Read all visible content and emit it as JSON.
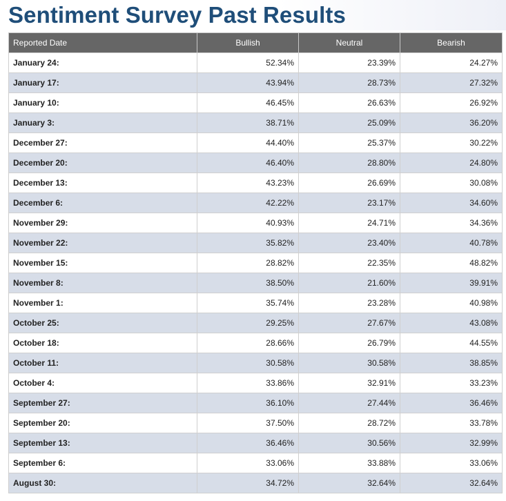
{
  "page": {
    "title": "Sentiment Survey Past Results"
  },
  "table": {
    "headers": [
      "Reported Date",
      "Bullish",
      "Neutral",
      "Bearish"
    ],
    "rows": [
      {
        "date": "January 24:",
        "bullish": "52.34%",
        "neutral": "23.39%",
        "bearish": "24.27%"
      },
      {
        "date": "January 17:",
        "bullish": "43.94%",
        "neutral": "28.73%",
        "bearish": "27.32%"
      },
      {
        "date": "January 10:",
        "bullish": "46.45%",
        "neutral": "26.63%",
        "bearish": "26.92%"
      },
      {
        "date": "January 3:",
        "bullish": "38.71%",
        "neutral": "25.09%",
        "bearish": "36.20%"
      },
      {
        "date": "December 27:",
        "bullish": "44.40%",
        "neutral": "25.37%",
        "bearish": "30.22%"
      },
      {
        "date": "December 20:",
        "bullish": "46.40%",
        "neutral": "28.80%",
        "bearish": "24.80%"
      },
      {
        "date": "December 13:",
        "bullish": "43.23%",
        "neutral": "26.69%",
        "bearish": "30.08%"
      },
      {
        "date": "December 6:",
        "bullish": "42.22%",
        "neutral": "23.17%",
        "bearish": "34.60%"
      },
      {
        "date": "November 29:",
        "bullish": "40.93%",
        "neutral": "24.71%",
        "bearish": "34.36%"
      },
      {
        "date": "November 22:",
        "bullish": "35.82%",
        "neutral": "23.40%",
        "bearish": "40.78%"
      },
      {
        "date": "November 15:",
        "bullish": "28.82%",
        "neutral": "22.35%",
        "bearish": "48.82%"
      },
      {
        "date": "November 8:",
        "bullish": "38.50%",
        "neutral": "21.60%",
        "bearish": "39.91%"
      },
      {
        "date": "November 1:",
        "bullish": "35.74%",
        "neutral": "23.28%",
        "bearish": "40.98%"
      },
      {
        "date": "October 25:",
        "bullish": "29.25%",
        "neutral": "27.67%",
        "bearish": "43.08%"
      },
      {
        "date": "October 18:",
        "bullish": "28.66%",
        "neutral": "26.79%",
        "bearish": "44.55%"
      },
      {
        "date": "October 11:",
        "bullish": "30.58%",
        "neutral": "30.58%",
        "bearish": "38.85%"
      },
      {
        "date": "October 4:",
        "bullish": "33.86%",
        "neutral": "32.91%",
        "bearish": "33.23%"
      },
      {
        "date": "September 27:",
        "bullish": "36.10%",
        "neutral": "27.44%",
        "bearish": "36.46%"
      },
      {
        "date": "September 20:",
        "bullish": "37.50%",
        "neutral": "28.72%",
        "bearish": "33.78%"
      },
      {
        "date": "September 13:",
        "bullish": "36.46%",
        "neutral": "30.56%",
        "bearish": "32.99%"
      },
      {
        "date": "September 6:",
        "bullish": "33.06%",
        "neutral": "33.88%",
        "bearish": "33.06%"
      },
      {
        "date": "August 30:",
        "bullish": "34.72%",
        "neutral": "32.64%",
        "bearish": "32.64%"
      }
    ]
  },
  "colors": {
    "title": "#1f4e79",
    "header_background": "#666666",
    "header_text": "#ffffff",
    "row_odd": "#ffffff",
    "row_even": "#d7dde8",
    "border": "#cfcfcf"
  }
}
